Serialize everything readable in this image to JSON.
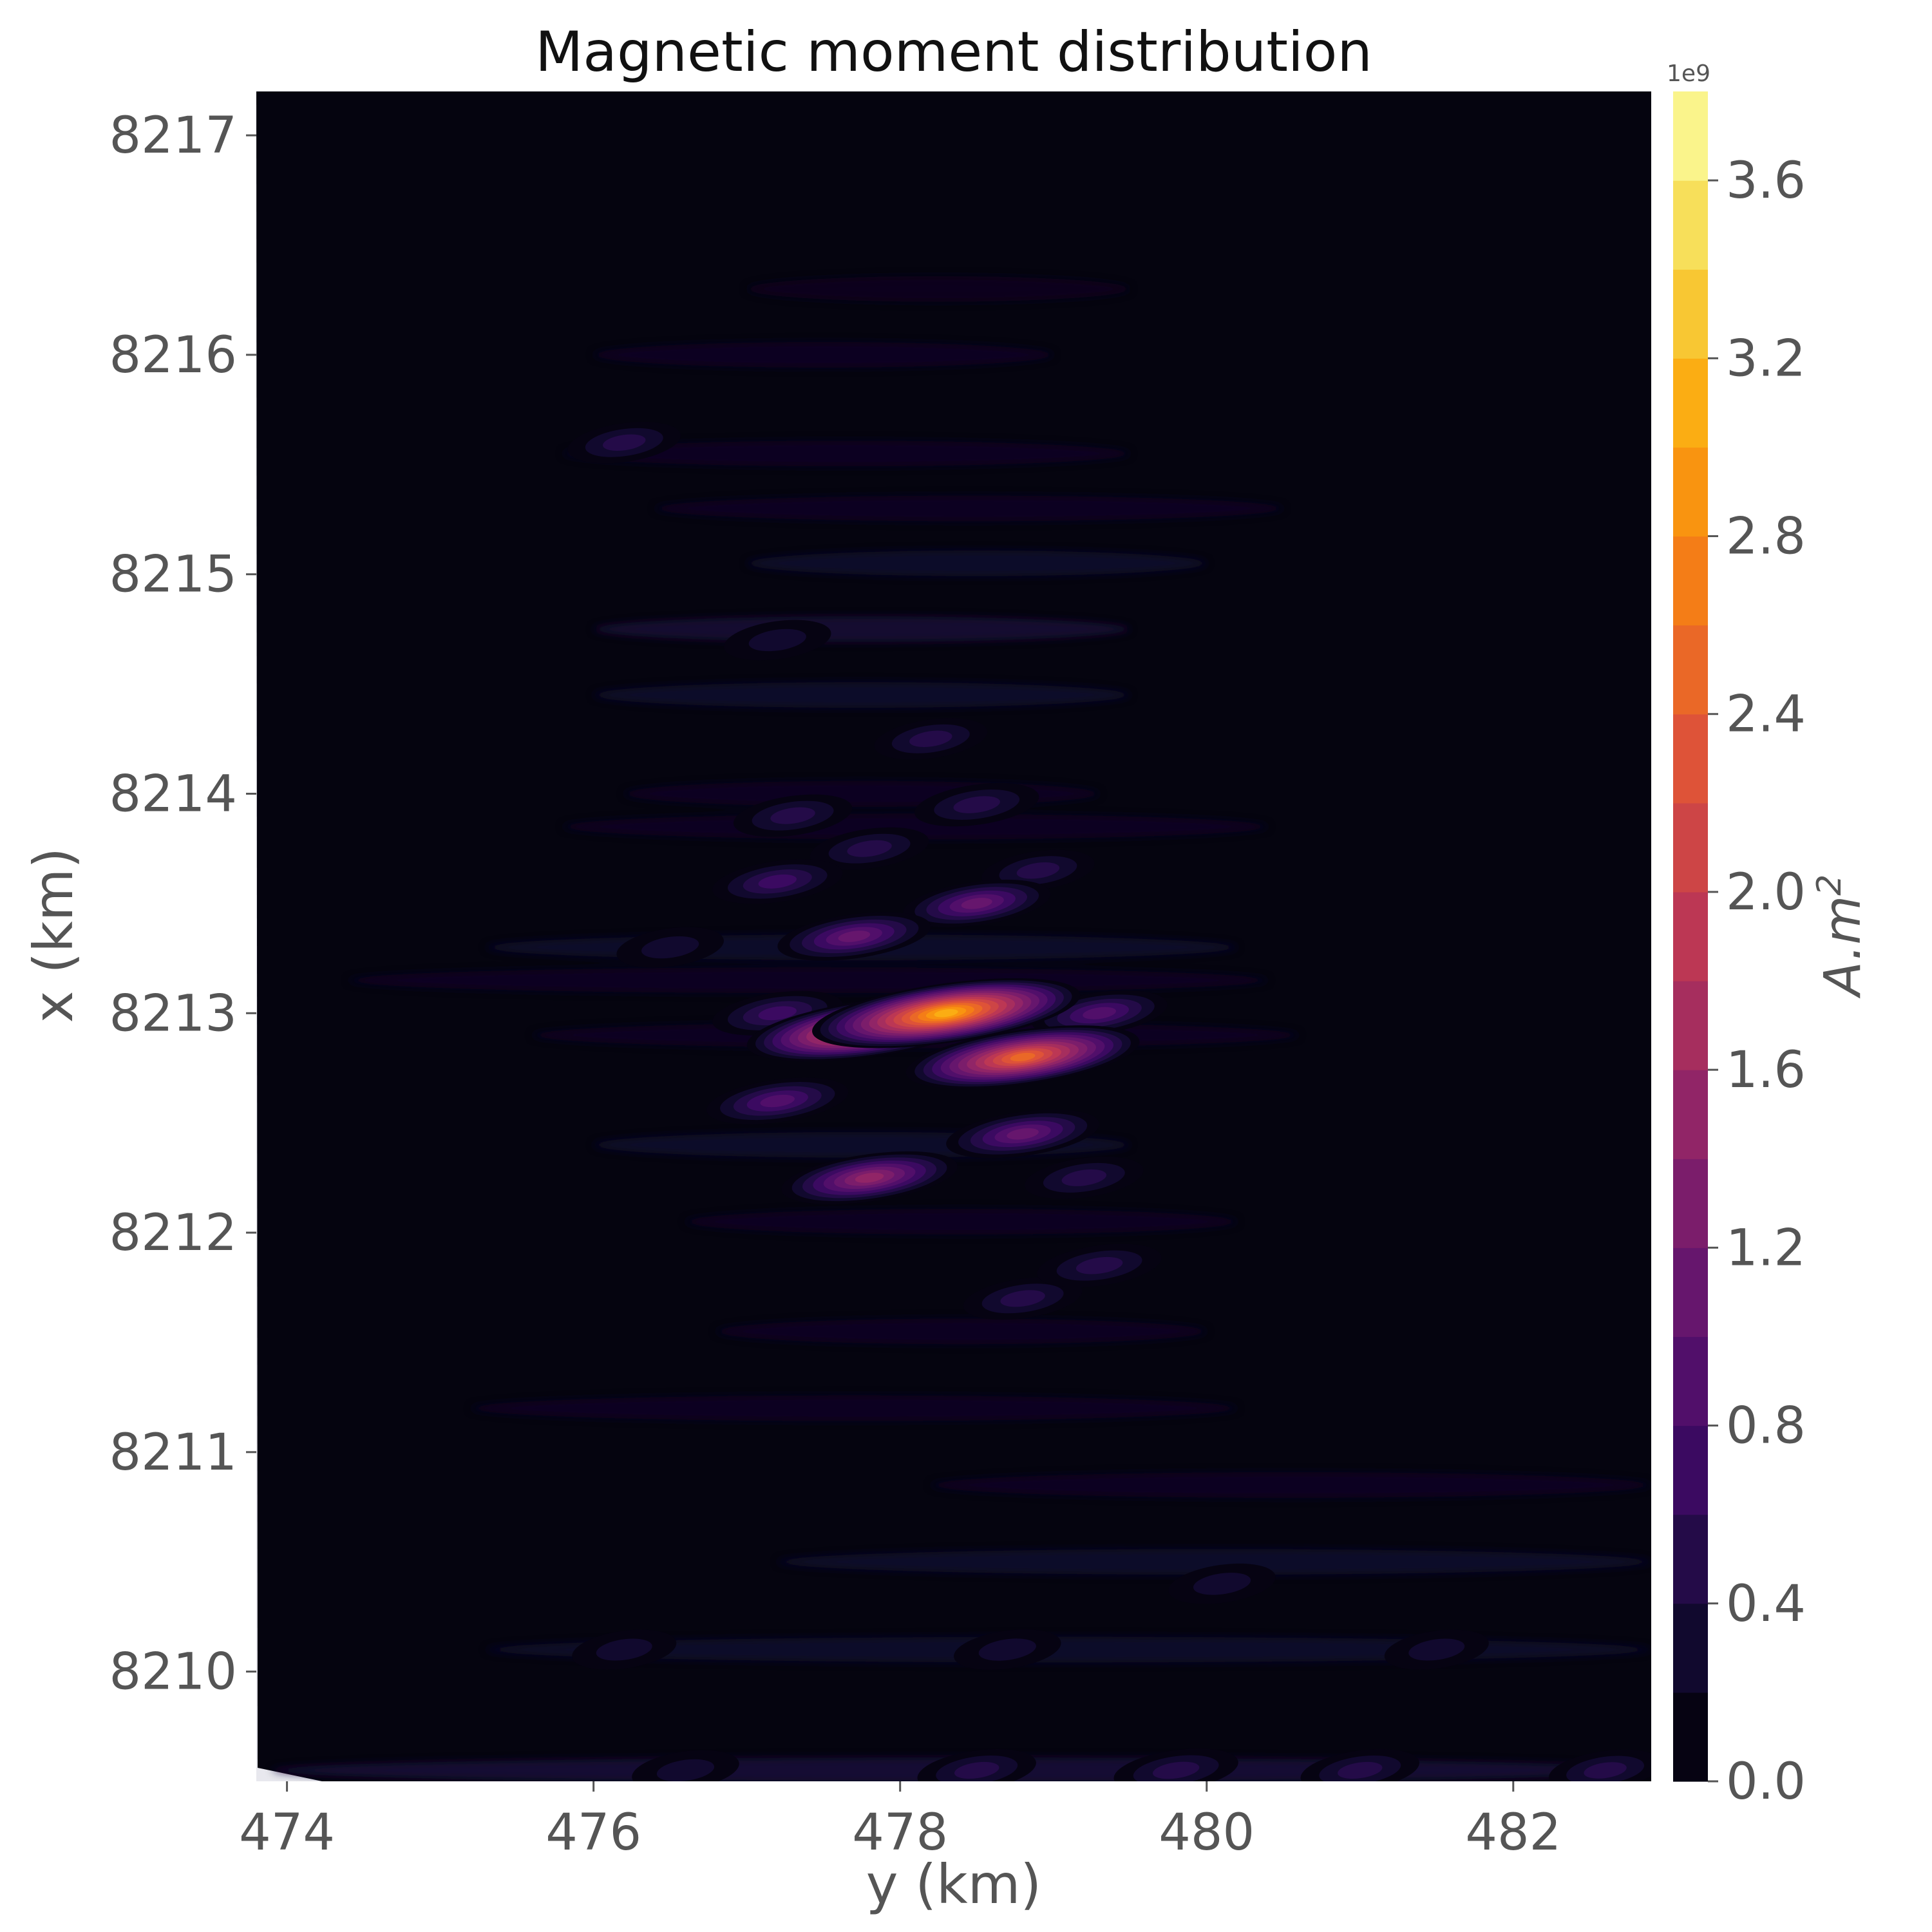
{
  "chart_data": {
    "type": "heatmap",
    "subtype": "filled-contour",
    "title": "Magnetic moment distribution",
    "xlabel": "y (km)",
    "ylabel": "x (km)",
    "xlim": [
      473.8,
      482.9
    ],
    "ylim": [
      8209.5,
      8217.2
    ],
    "x_ticks": [
      "474",
      "476",
      "478",
      "480",
      "482"
    ],
    "y_ticks": [
      "8210",
      "8211",
      "8212",
      "8213",
      "8214",
      "8215",
      "8216",
      "8217"
    ],
    "grid": false,
    "colormap": "inferno",
    "colorbar": {
      "label": "A.m2",
      "label_base": "A.m",
      "label_exp": "2",
      "multiplier": "1e9",
      "range": [
        0,
        3.8
      ],
      "levels_step": 0.2,
      "ticks": [
        "0.0",
        "0.4",
        "0.8",
        "1.2",
        "1.6",
        "2.0",
        "2.4",
        "2.8",
        "3.2",
        "3.6"
      ]
    },
    "background_value": 0.0,
    "anomalies": [
      {
        "y": 478.3,
        "x": 8213.0,
        "peak": 3.2
      },
      {
        "y": 477.8,
        "x": 8212.93,
        "peak": 2.8
      },
      {
        "y": 478.8,
        "x": 8212.8,
        "peak": 2.6
      },
      {
        "y": 477.8,
        "x": 8212.25,
        "peak": 1.6
      },
      {
        "y": 478.8,
        "x": 8212.45,
        "peak": 1.2
      },
      {
        "y": 477.2,
        "x": 8212.6,
        "peak": 1.0
      },
      {
        "y": 477.7,
        "x": 8213.35,
        "peak": 1.2
      },
      {
        "y": 478.5,
        "x": 8213.5,
        "peak": 1.1
      },
      {
        "y": 479.3,
        "x": 8213.0,
        "peak": 0.9
      },
      {
        "y": 477.2,
        "x": 8213.6,
        "peak": 0.8
      },
      {
        "y": 477.2,
        "x": 8213.0,
        "peak": 0.8
      },
      {
        "y": 478.5,
        "x": 8213.95,
        "peak": 0.7
      },
      {
        "y": 477.3,
        "x": 8213.9,
        "peak": 0.6
      },
      {
        "y": 477.8,
        "x": 8213.75,
        "peak": 0.6
      },
      {
        "y": 478.2,
        "x": 8214.25,
        "peak": 0.5
      },
      {
        "y": 477.2,
        "x": 8214.7,
        "peak": 0.4
      },
      {
        "y": 476.2,
        "x": 8215.6,
        "peak": 0.5
      },
      {
        "y": 479.3,
        "x": 8211.85,
        "peak": 0.7
      },
      {
        "y": 478.8,
        "x": 8211.7,
        "peak": 0.6
      },
      {
        "y": 479.2,
        "x": 8212.25,
        "peak": 0.6
      },
      {
        "y": 476.5,
        "x": 8213.3,
        "peak": 0.4
      },
      {
        "y": 478.9,
        "x": 8213.65,
        "peak": 0.5
      },
      {
        "y": 478.5,
        "x": 8209.55,
        "peak": 0.6
      },
      {
        "y": 479.8,
        "x": 8209.55,
        "peak": 0.7
      },
      {
        "y": 481.0,
        "x": 8209.55,
        "peak": 0.6
      },
      {
        "y": 482.6,
        "x": 8209.55,
        "peak": 0.5
      },
      {
        "y": 476.6,
        "x": 8209.55,
        "peak": 0.4
      },
      {
        "y": 478.7,
        "x": 8210.1,
        "peak": 0.4
      },
      {
        "y": 480.1,
        "x": 8210.4,
        "peak": 0.4
      },
      {
        "y": 476.2,
        "x": 8210.1,
        "peak": 0.35
      },
      {
        "y": 481.5,
        "x": 8210.1,
        "peak": 0.35
      }
    ],
    "streaks": [
      {
        "y0": 476.0,
        "y1": 479.5,
        "x": 8214.75,
        "peak": 0.35
      },
      {
        "y0": 476.0,
        "y1": 479.5,
        "x": 8214.45,
        "peak": 0.3
      },
      {
        "y0": 475.3,
        "y1": 480.2,
        "x": 8213.3,
        "peak": 0.3
      },
      {
        "y0": 476.0,
        "y1": 479.5,
        "x": 8212.4,
        "peak": 0.3
      },
      {
        "y0": 477.0,
        "y1": 480.0,
        "x": 8215.05,
        "peak": 0.3
      },
      {
        "y0": 476.4,
        "y1": 480.5,
        "x": 8215.3,
        "peak": 0.25
      },
      {
        "y0": 475.8,
        "y1": 479.5,
        "x": 8215.55,
        "peak": 0.25
      },
      {
        "y0": 475.8,
        "y1": 480.4,
        "x": 8213.85,
        "peak": 0.25
      },
      {
        "y0": 476.2,
        "y1": 479.3,
        "x": 8214.0,
        "peak": 0.25
      },
      {
        "y0": 474.4,
        "y1": 480.4,
        "x": 8213.15,
        "peak": 0.25
      },
      {
        "y0": 475.6,
        "y1": 480.6,
        "x": 8212.9,
        "peak": 0.25
      },
      {
        "y0": 476.6,
        "y1": 480.2,
        "x": 8212.05,
        "peak": 0.25
      },
      {
        "y0": 475.2,
        "y1": 480.2,
        "x": 8211.2,
        "peak": 0.25
      },
      {
        "y0": 478.2,
        "y1": 482.9,
        "x": 8210.85,
        "peak": 0.25
      },
      {
        "y0": 477.2,
        "y1": 482.9,
        "x": 8210.5,
        "peak": 0.3
      },
      {
        "y0": 475.3,
        "y1": 482.9,
        "x": 8210.1,
        "peak": 0.3
      },
      {
        "y0": 473.9,
        "y1": 482.9,
        "x": 8209.55,
        "peak": 0.4
      },
      {
        "y0": 476.0,
        "y1": 479.0,
        "x": 8216.0,
        "peak": 0.22
      },
      {
        "y0": 477.0,
        "y1": 479.5,
        "x": 8216.3,
        "peak": 0.2
      },
      {
        "y0": 476.8,
        "y1": 480.0,
        "x": 8211.55,
        "peak": 0.22
      }
    ]
  }
}
